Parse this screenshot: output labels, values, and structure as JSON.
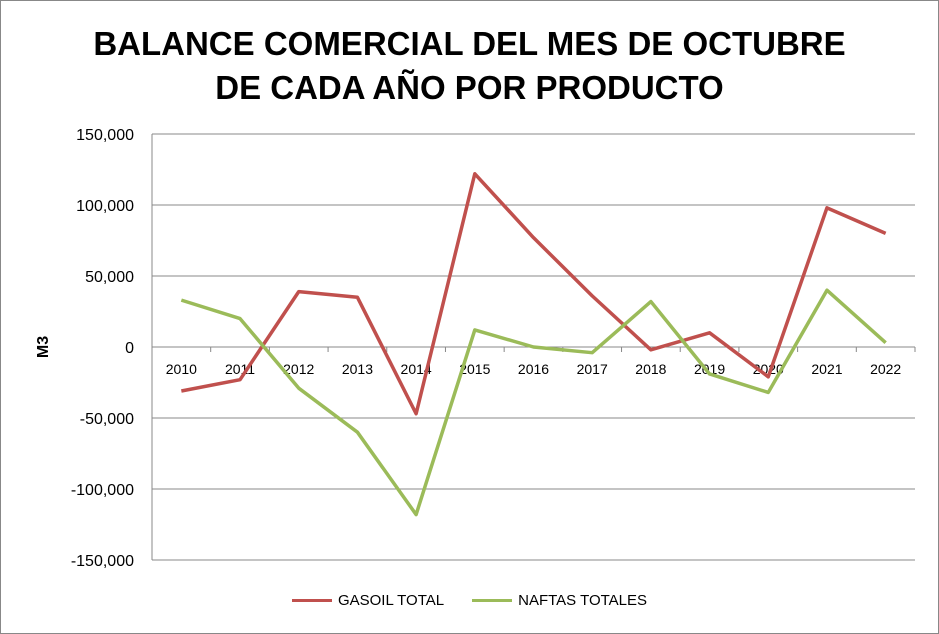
{
  "chart_data": {
    "type": "line",
    "title_line1": "BALANCE COMERCIAL DEL MES DE OCTUBRE",
    "title_line2": "DE CADA AÑO POR PRODUCTO",
    "xlabel": "",
    "ylabel": "M3",
    "ylim": [
      -150000,
      150000
    ],
    "yticks": [
      "150,000",
      "100,000",
      "50,000",
      "0",
      "-50,000",
      "-100,000",
      "-150,000"
    ],
    "ytick_values": [
      150000,
      100000,
      50000,
      0,
      -50000,
      -100000,
      -150000
    ],
    "grid": true,
    "legend_position": "bottom",
    "categories": [
      "2010",
      "2011",
      "2012",
      "2013",
      "2014",
      "2015",
      "2016",
      "2017",
      "2018",
      "2019",
      "2020",
      "2021",
      "2022"
    ],
    "series": [
      {
        "name": "GASOIL TOTAL",
        "color": "#c0504d",
        "values": [
          -31000,
          -23000,
          39000,
          35000,
          -47000,
          122000,
          77000,
          36000,
          -2000,
          10000,
          -21000,
          98000,
          80000
        ]
      },
      {
        "name": "NAFTAS TOTALES",
        "color": "#9bbb59",
        "values": [
          33000,
          20000,
          -29000,
          -60000,
          -118000,
          12000,
          0,
          -4000,
          32000,
          -19000,
          -32000,
          40000,
          3000
        ]
      }
    ]
  }
}
